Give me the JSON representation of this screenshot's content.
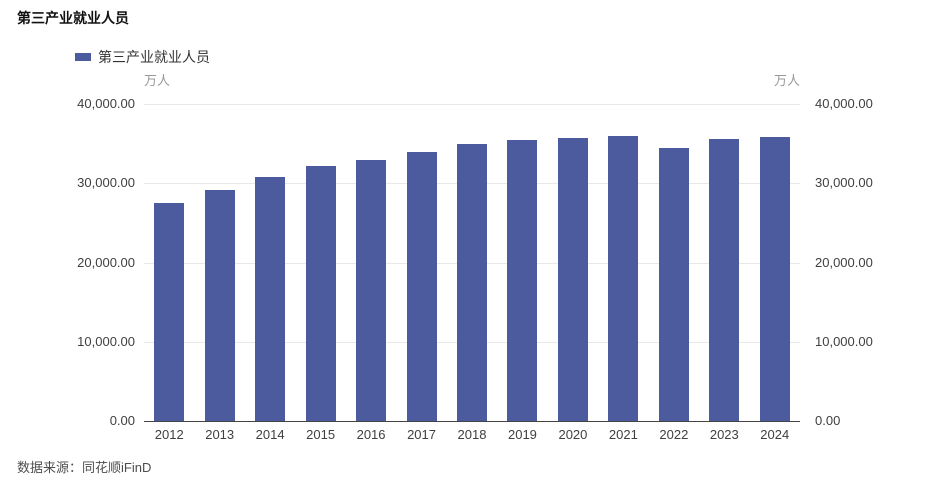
{
  "header": {
    "title": "第三产业就业人员"
  },
  "legend": {
    "label": "第三产业就业人员"
  },
  "footer": {
    "source": "数据来源：同花顺iFinD"
  },
  "chart_data": {
    "type": "bar",
    "title": "第三产业就业人员",
    "categories": [
      "2012",
      "2013",
      "2014",
      "2015",
      "2016",
      "2017",
      "2018",
      "2019",
      "2020",
      "2021",
      "2022",
      "2023",
      "2024"
    ],
    "series": [
      {
        "name": "第三产业就业人员",
        "values": [
          27450,
          29150,
          30850,
          32200,
          32950,
          34000,
          34950,
          35450,
          35750,
          35950,
          34500,
          35600,
          35850
        ]
      }
    ],
    "unit": "万人",
    "ylabel_left": "万人",
    "ylabel_right": "万人",
    "xlabel": "",
    "ylim": [
      0,
      40000
    ],
    "yticks": [
      {
        "label": "0.00",
        "value": 0
      },
      {
        "label": "10,000.00",
        "value": 10000
      },
      {
        "label": "20,000.00",
        "value": 20000
      },
      {
        "label": "30,000.00",
        "value": 30000
      },
      {
        "label": "40,000.00",
        "value": 40000
      }
    ],
    "bar_color": "#4C5B9D",
    "grid": true,
    "legend_position": "top-left"
  }
}
